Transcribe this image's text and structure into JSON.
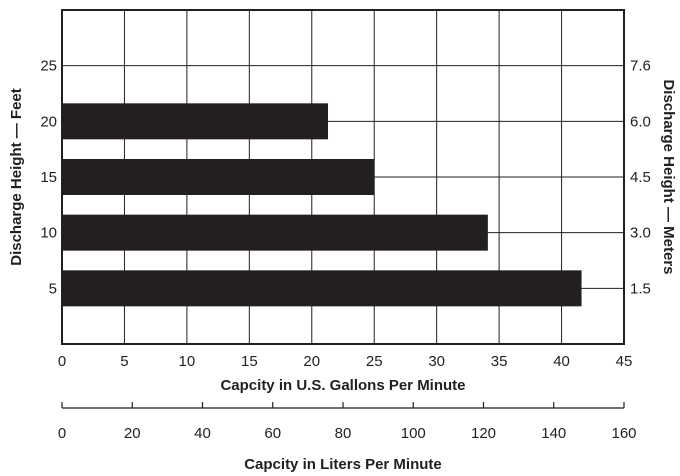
{
  "chart_data": {
    "type": "bar",
    "orientation": "horizontal",
    "categories": [
      "5",
      "10",
      "15",
      "20"
    ],
    "values": [
      41.6,
      34.1,
      25.0,
      21.3
    ],
    "bar_color": "#231f20",
    "grid": true,
    "x_axis": {
      "label": "Capcity in U.S. Gallons Per Minute",
      "range": [
        0,
        45
      ],
      "ticks": [
        "0",
        "5",
        "10",
        "15",
        "20",
        "25",
        "30",
        "35",
        "40",
        "45"
      ]
    },
    "x2_axis": {
      "label": "Capcity in Liters Per Minute",
      "range": [
        0,
        160
      ],
      "ticks": [
        "0",
        "20",
        "40",
        "60",
        "80",
        "100",
        "120",
        "140",
        "160"
      ]
    },
    "y_axis_left": {
      "label": "Discharge Height — Feet",
      "range": [
        0,
        30
      ],
      "ticks": [
        "5",
        "10",
        "15",
        "20",
        "25"
      ]
    },
    "y_axis_right": {
      "label": "Discharge Height — Meters",
      "ticks": [
        "1.5",
        "3.0",
        "4.5",
        "6.0",
        "7.6"
      ]
    }
  }
}
